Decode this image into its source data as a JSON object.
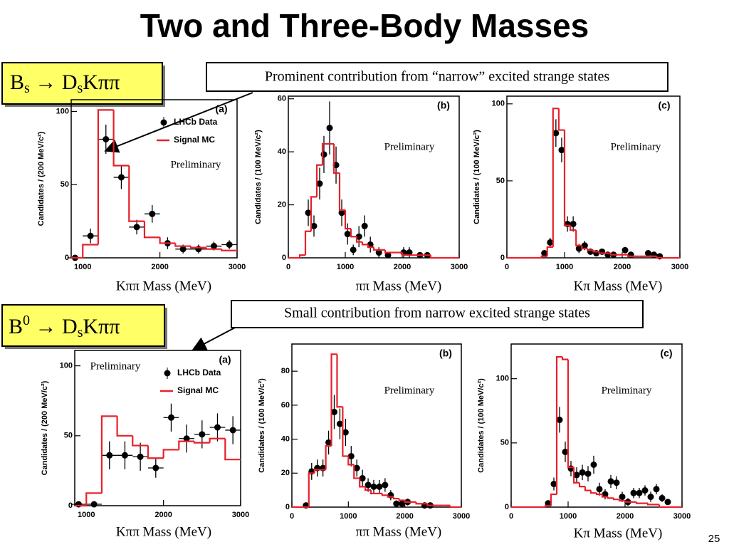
{
  "title": "Two and Three-Body Masses",
  "decays": [
    {
      "parts": [
        "B",
        "s",
        " → D",
        "s",
        "Kππ"
      ]
    },
    {
      "parts": [
        "B",
        "0",
        " → D",
        "s",
        "Kππ"
      ]
    }
  ],
  "annotations": [
    "Prominent contribution from “narrow” excited strange states",
    "Small contribution from narrow excited strange states"
  ],
  "page_number": "25",
  "chart_data": [
    {
      "type": "histogram",
      "panel": "(a)",
      "annotation": "Preliminary",
      "xlabel": "Kππ Mass (MeV)",
      "ylabel": "Candidates / (200 MeV/c²)",
      "xlim": [
        850,
        3000
      ],
      "xticks": [
        1000,
        2000,
        3000
      ],
      "ylim": [
        0,
        108
      ],
      "yticks": [
        0,
        50,
        100
      ],
      "legend": true,
      "xerr": 100,
      "series": [
        {
          "name": "LHCb Data",
          "color": "#000000",
          "x": [
            900,
            1100,
            1300,
            1500,
            1700,
            1900,
            2100,
            2300,
            2500,
            2700,
            2900
          ],
          "values": [
            0,
            15,
            81,
            55,
            21,
            30,
            10,
            6,
            6,
            8,
            9
          ],
          "errors": [
            2,
            5,
            10,
            8,
            5,
            6,
            4,
            3,
            3,
            3,
            3
          ]
        },
        {
          "name": "Signal MC",
          "color": "#e8202a",
          "bins": [
            850,
            1000,
            1200,
            1400,
            1600,
            1800,
            2000,
            2200,
            2400,
            2600,
            2800,
            3000
          ],
          "values": [
            0,
            9,
            101,
            63,
            25,
            14,
            10,
            8,
            7,
            6,
            5
          ]
        }
      ]
    },
    {
      "type": "histogram",
      "panel": "(b)",
      "annotation": "Preliminary",
      "xlabel": "ππ Mass (MeV)",
      "ylabel": "Candidates / (100 MeV/c²)",
      "xlim": [
        0,
        3000
      ],
      "xticks": [
        0,
        1000,
        2000,
        3000
      ],
      "ylim": [
        0,
        61
      ],
      "yticks": [
        0,
        20,
        40,
        60
      ],
      "legend": false,
      "xerr": 50,
      "series": [
        {
          "color": "#000000",
          "x": [
            350,
            450,
            550,
            625,
            725,
            838,
            938,
            1040,
            1140,
            1240,
            1340,
            1440,
            1590,
            1750,
            2025,
            2125,
            2310,
            2440
          ],
          "values": [
            17,
            12,
            28,
            39,
            49,
            35,
            17,
            9,
            3,
            8,
            12,
            5,
            2,
            1,
            2,
            2,
            1,
            1
          ],
          "errors": [
            5,
            4,
            6,
            7,
            10,
            7,
            5,
            4,
            2,
            4,
            4,
            3,
            2,
            1,
            2,
            2,
            1,
            1
          ]
        },
        {
          "color": "#e8202a",
          "bins": [
            0,
            100,
            200,
            300,
            400,
            500,
            600,
            700,
            800,
            900,
            1000,
            1100,
            1200,
            1300,
            1400,
            1500,
            1600,
            1700,
            1800,
            1900,
            2000,
            2100,
            2200,
            2300,
            2400,
            2500,
            2600,
            2700,
            2800,
            2900,
            3000
          ],
          "values": [
            0,
            0,
            1,
            10,
            23,
            35,
            43,
            43,
            32,
            18,
            11,
            8,
            6,
            5,
            4,
            3,
            3,
            2,
            2,
            2,
            1,
            1,
            1,
            1,
            1,
            0,
            0,
            0,
            0,
            0
          ]
        }
      ]
    },
    {
      "type": "histogram",
      "panel": "(c)",
      "annotation": "Preliminary",
      "xlabel": "Kπ Mass (MeV)",
      "ylabel": "Candidates / (100 MeV/c²)",
      "xlim": [
        0,
        3000
      ],
      "xticks": [
        0,
        1000,
        2000,
        3000
      ],
      "ylim": [
        0,
        105
      ],
      "yticks": [
        0,
        50,
        100
      ],
      "legend": false,
      "xerr": 50,
      "series": [
        {
          "color": "#000000",
          "x": [
            650,
            750,
            850,
            950,
            1050,
            1150,
            1250,
            1350,
            1450,
            1550,
            1650,
            1750,
            1850,
            2050,
            2150,
            2450,
            2550,
            2650
          ],
          "values": [
            3,
            10,
            81,
            70,
            22,
            22,
            6,
            8,
            4,
            3,
            4,
            2,
            2,
            5,
            2,
            3,
            2,
            1
          ],
          "errors": [
            2,
            3,
            9,
            8,
            5,
            5,
            3,
            3,
            2,
            2,
            2,
            1,
            1,
            2,
            1,
            2,
            1,
            1
          ]
        },
        {
          "color": "#e8202a",
          "bins": [
            0,
            100,
            200,
            300,
            400,
            500,
            600,
            700,
            800,
            900,
            1000,
            1100,
            1200,
            1300,
            1400,
            1500,
            1600,
            1700,
            1800,
            1900,
            2000,
            2100,
            2200,
            2300,
            2400,
            2500,
            2600,
            2700,
            2800,
            2900,
            3000
          ],
          "values": [
            0,
            0,
            0,
            0,
            0,
            0,
            1,
            7,
            97,
            83,
            21,
            18,
            8,
            6,
            5,
            4,
            3,
            3,
            2,
            2,
            2,
            1,
            1,
            1,
            1,
            1,
            0,
            0,
            0,
            0
          ]
        }
      ]
    },
    {
      "type": "histogram",
      "panel": "(a)",
      "annotation": "Preliminary",
      "xlabel": "Kππ Mass (MeV)",
      "ylabel": "Candidates / (200 MeV/c²)",
      "xlim": [
        850,
        3000
      ],
      "xticks": [
        1000,
        2000,
        3000
      ],
      "ylim": [
        0,
        111
      ],
      "yticks": [
        0,
        50,
        100
      ],
      "legend": true,
      "xerr": 100,
      "series": [
        {
          "name": "LHCb Data",
          "color": "#000000",
          "x": [
            900,
            1100,
            1300,
            1500,
            1700,
            1900,
            2100,
            2300,
            2500,
            2700,
            2900
          ],
          "values": [
            1,
            1,
            36,
            36,
            35,
            27,
            63,
            48,
            51,
            56,
            54
          ],
          "errors": [
            2,
            2,
            10,
            10,
            10,
            7,
            10,
            10,
            10,
            10,
            10
          ]
        },
        {
          "name": "Signal MC",
          "color": "#e8202a",
          "bins": [
            850,
            1000,
            1200,
            1400,
            1600,
            1800,
            2000,
            2200,
            2400,
            2600,
            2800,
            3000
          ],
          "values": [
            0,
            9,
            64,
            50,
            43,
            34,
            40,
            46,
            45,
            48,
            33
          ]
        }
      ]
    },
    {
      "type": "histogram",
      "panel": "(b)",
      "annotation": "Preliminary",
      "xlabel": "ππ Mass (MeV)",
      "ylabel": "Candidates / (100 MeV/c²)",
      "xlim": [
        0,
        3000
      ],
      "xticks": [
        0,
        1000,
        2000,
        3000
      ],
      "ylim": [
        0,
        96
      ],
      "yticks": [
        0,
        20,
        40,
        60,
        80
      ],
      "legend": false,
      "xerr": 50,
      "series": [
        {
          "color": "#000000",
          "x": [
            250,
            350,
            450,
            550,
            650,
            750,
            850,
            950,
            1050,
            1150,
            1250,
            1350,
            1450,
            1550,
            1650,
            1750,
            1850,
            1950,
            2050,
            2350,
            2450
          ],
          "values": [
            1,
            21,
            23,
            23,
            38,
            56,
            49,
            44,
            30,
            23,
            17,
            13,
            12,
            12,
            13,
            7,
            2,
            2,
            3,
            1,
            1
          ],
          "errors": [
            1,
            5,
            5,
            5,
            7,
            10,
            9,
            8,
            6,
            5,
            5,
            4,
            4,
            4,
            4,
            3,
            2,
            2,
            2,
            1,
            1
          ]
        },
        {
          "color": "#e8202a",
          "bins": [
            0,
            100,
            200,
            300,
            400,
            500,
            600,
            700,
            800,
            900,
            1000,
            1100,
            1200,
            1300,
            1400,
            1500,
            1600,
            1700,
            1800,
            1900,
            2000,
            2100,
            2200,
            2300,
            2400,
            2500,
            2600,
            2700,
            2800,
            2900,
            3000
          ],
          "values": [
            0,
            0,
            0,
            20,
            22,
            22,
            36,
            90,
            59,
            30,
            25,
            17,
            12,
            10,
            8,
            8,
            7,
            6,
            5,
            4,
            3,
            3,
            2,
            2,
            1,
            1,
            1,
            1,
            0,
            0
          ]
        }
      ]
    },
    {
      "type": "histogram",
      "panel": "(c)",
      "annotation": "Preliminary",
      "xlabel": "Kπ Mass (MeV)",
      "ylabel": "Candidates / (100 MeV/c²)",
      "xlim": [
        0,
        3000
      ],
      "xticks": [
        0,
        1000,
        2000,
        3000
      ],
      "ylim": [
        0,
        127
      ],
      "yticks": [
        0,
        50,
        100
      ],
      "legend": false,
      "xerr": 50,
      "series": [
        {
          "color": "#000000",
          "x": [
            650,
            750,
            850,
            950,
            1050,
            1150,
            1250,
            1350,
            1450,
            1550,
            1650,
            1750,
            1850,
            1950,
            2050,
            2150,
            2250,
            2350,
            2450,
            2550,
            2650,
            2750
          ],
          "values": [
            3,
            18,
            68,
            43,
            30,
            25,
            27,
            26,
            33,
            14,
            10,
            20,
            19,
            8,
            4,
            11,
            11,
            13,
            8,
            14,
            7,
            4
          ],
          "errors": [
            2,
            5,
            10,
            8,
            6,
            6,
            6,
            6,
            7,
            5,
            4,
            5,
            5,
            4,
            3,
            4,
            4,
            4,
            4,
            4,
            3,
            2
          ]
        },
        {
          "color": "#e8202a",
          "bins": [
            0,
            100,
            200,
            300,
            400,
            500,
            600,
            700,
            800,
            900,
            1000,
            1100,
            1200,
            1300,
            1400,
            1500,
            1600,
            1700,
            1800,
            1900,
            2000,
            2100,
            2200,
            2300,
            2400,
            2500,
            2600,
            2700,
            2800,
            2900,
            3000
          ],
          "values": [
            0,
            0,
            0,
            0,
            0,
            0,
            1,
            10,
            117,
            115,
            31,
            19,
            16,
            13,
            11,
            10,
            8,
            7,
            6,
            5,
            4,
            4,
            3,
            3,
            2,
            2,
            0,
            0,
            0,
            0
          ]
        }
      ]
    }
  ]
}
